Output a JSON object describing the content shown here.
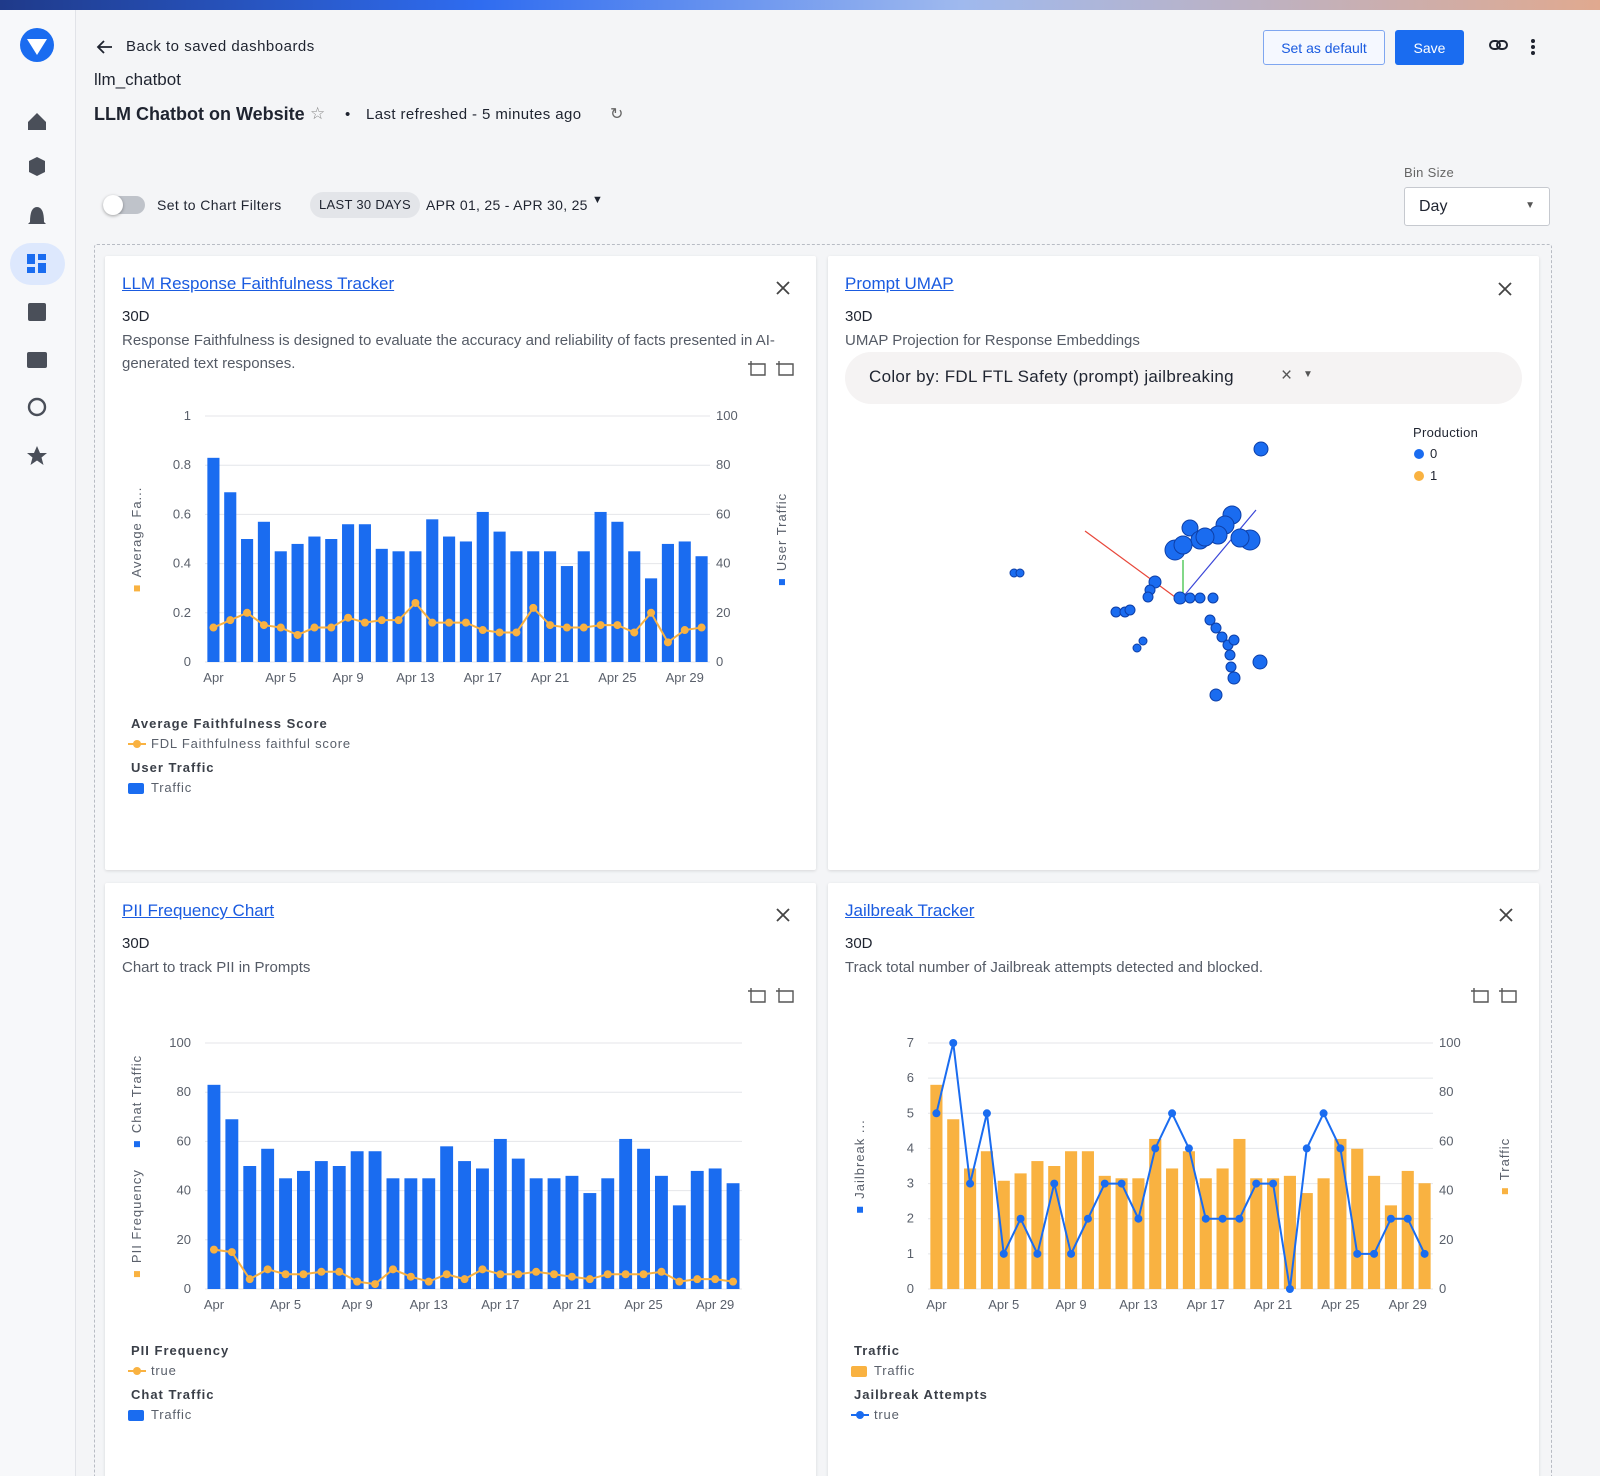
{
  "header": {
    "back": "Back to saved dashboards",
    "project": "llm_chatbot",
    "title": "LLM Chatbot on Website",
    "refreshed": "Last refreshed - 5 minutes ago",
    "set_default": "Set as default",
    "save": "Save"
  },
  "filters": {
    "toggle": "Set to Chart Filters",
    "range_chip": "LAST 30 DAYS",
    "range": "APR 01, 25 - APR 30, 25",
    "bin_size_label": "Bin Size",
    "bin_size": "Day"
  },
  "umap_panel": {
    "title": "Prompt UMAP",
    "subtitle": "30D",
    "description": "UMAP Projection for Response Embeddings",
    "color_by": "Color by: FDL FTL Safety (prompt) jailbreaking",
    "legend_title": "Production",
    "legend": [
      {
        "name": "0",
        "color": "#1a6cf0"
      },
      {
        "name": "1",
        "color": "#f9b241"
      }
    ]
  },
  "chart_data": [
    {
      "type": "bar_line",
      "title": "LLM Response Faithfulness Tracker",
      "subtitle": "30D",
      "description": "Response Faithfulness is designed to evaluate the accuracy and reliability of facts presented in AI-generated text responses.",
      "categories": [
        "Apr",
        null,
        null,
        null,
        "Apr 5",
        null,
        null,
        null,
        "Apr 9",
        null,
        null,
        null,
        "Apr 13",
        null,
        null,
        null,
        "Apr 17",
        null,
        null,
        null,
        "Apr 21",
        null,
        null,
        null,
        "Apr 25",
        null,
        null,
        null,
        "Apr 29",
        null
      ],
      "series": [
        {
          "name": "FDL Faithfulness faithful score",
          "group": "Average Faithfulness Score",
          "axis_label": "Average Fa...",
          "type": "line",
          "axis": "y",
          "color": "#f9b241",
          "values": [
            0.14,
            0.17,
            0.2,
            0.15,
            0.14,
            0.11,
            0.14,
            0.14,
            0.18,
            0.16,
            0.17,
            0.17,
            0.24,
            0.16,
            0.16,
            0.16,
            0.13,
            0.12,
            0.12,
            0.22,
            0.15,
            0.14,
            0.14,
            0.15,
            0.15,
            0.12,
            0.2,
            0.08,
            0.13,
            0.14
          ]
        },
        {
          "name": "Traffic",
          "group": "User Traffic",
          "axis_label": "User Traffic",
          "type": "bar",
          "axis": "y2",
          "color": "#1a6cf0",
          "values": [
            83,
            69,
            50,
            57,
            45,
            48,
            51,
            50,
            56,
            56,
            46,
            45,
            45,
            58,
            51,
            49,
            61,
            53,
            45,
            45,
            45,
            39,
            45,
            61,
            57,
            45,
            34,
            48,
            49,
            43
          ]
        }
      ],
      "ylim": [
        0,
        1
      ],
      "yticks": [
        0,
        0.2,
        0.4,
        0.6,
        0.8,
        1
      ],
      "y2lim": [
        0,
        100
      ],
      "y2ticks": [
        0,
        20,
        40,
        60,
        80,
        100
      ],
      "grid": true
    },
    {
      "type": "bar_line",
      "title": "PII Frequency Chart",
      "subtitle": "30D",
      "description": "Chart to track PII in Prompts",
      "categories": [
        "Apr",
        null,
        null,
        null,
        "Apr 5",
        null,
        null,
        null,
        "Apr 9",
        null,
        null,
        null,
        "Apr 13",
        null,
        null,
        null,
        "Apr 17",
        null,
        null,
        null,
        "Apr 21",
        null,
        null,
        null,
        "Apr 25",
        null,
        null,
        null,
        "Apr 29",
        null
      ],
      "series": [
        {
          "name": "true",
          "group": "PII Frequency",
          "axis_label": "PII Frequency",
          "type": "line",
          "axis": "y",
          "color": "#f9b241",
          "values": [
            16,
            15,
            4,
            8,
            6,
            6,
            7,
            7,
            3,
            2,
            8,
            5,
            3,
            6,
            4,
            8,
            6,
            6,
            7,
            6,
            5,
            4,
            6,
            6,
            6,
            7,
            3,
            4,
            4,
            3
          ]
        },
        {
          "name": "Traffic",
          "group": "Chat Traffic",
          "axis_label": "Chat Traffic",
          "type": "bar",
          "axis": "y",
          "color": "#1a6cf0",
          "values": [
            83,
            69,
            50,
            57,
            45,
            48,
            52,
            50,
            56,
            56,
            45,
            45,
            45,
            58,
            52,
            49,
            61,
            53,
            45,
            45,
            46,
            39,
            45,
            61,
            57,
            46,
            34,
            48,
            49,
            43
          ]
        }
      ],
      "ylim": [
        0,
        100
      ],
      "yticks": [
        0,
        20,
        40,
        60,
        80,
        100
      ],
      "grid": true
    },
    {
      "type": "bar_line",
      "title": "Jailbreak Tracker",
      "subtitle": "30D",
      "description": "Track total number of Jailbreak attempts detected and blocked.",
      "categories": [
        "Apr",
        null,
        null,
        null,
        "Apr 5",
        null,
        null,
        null,
        "Apr 9",
        null,
        null,
        null,
        "Apr 13",
        null,
        null,
        null,
        "Apr 17",
        null,
        null,
        null,
        "Apr 21",
        null,
        null,
        null,
        "Apr 25",
        null,
        null,
        null,
        "Apr 29",
        null
      ],
      "series": [
        {
          "name": "Traffic",
          "group": "Traffic",
          "axis_label": "Traffic",
          "type": "bar",
          "axis": "y2",
          "color": "#f9b241",
          "values": [
            83,
            69,
            49,
            56,
            44,
            47,
            52,
            50,
            56,
            56,
            46,
            45,
            45,
            61,
            49,
            56,
            45,
            49,
            61,
            45,
            45,
            46,
            39,
            45,
            61,
            57,
            46,
            34,
            48,
            43
          ]
        },
        {
          "name": "true",
          "group": "Jailbreak Attempts",
          "axis_label": "Jailbreak ...",
          "type": "line",
          "axis": "y",
          "color": "#1a6cf0",
          "values": [
            5,
            7,
            3,
            5,
            1,
            2,
            1,
            3,
            1,
            2,
            3,
            3,
            2,
            4,
            5,
            4,
            2,
            2,
            2,
            3,
            3,
            0,
            4,
            5,
            4,
            1,
            1,
            2,
            2,
            1
          ]
        }
      ],
      "ylim": [
        0,
        7
      ],
      "yticks": [
        0,
        1,
        2,
        3,
        4,
        5,
        6,
        7
      ],
      "y2lim": [
        0,
        100
      ],
      "y2ticks": [
        0,
        20,
        40,
        60,
        80,
        100
      ],
      "grid": true
    }
  ]
}
